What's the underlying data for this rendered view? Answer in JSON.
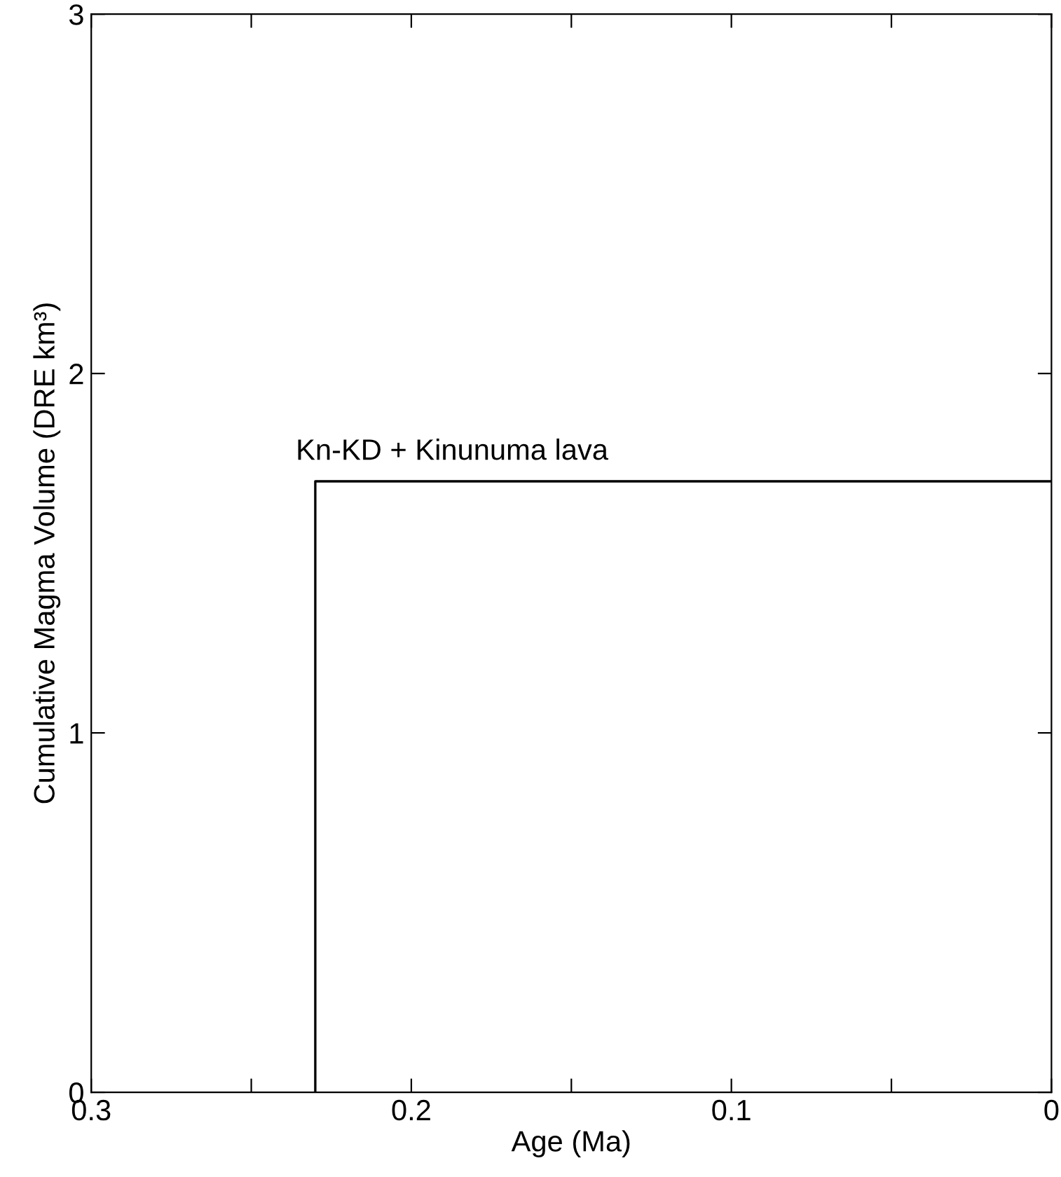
{
  "chart_data": {
    "type": "step",
    "xlabel": "Age (Ma)",
    "ylabel": "Cumulative Magma Volume (DRE km³)",
    "series": [
      {
        "color": "#000000",
        "x": [
          0.23,
          0
        ],
        "values": [
          0,
          1.7
        ]
      }
    ],
    "annotations": [
      {
        "text": "Kn-KD + Kinunuma lava",
        "x": 0.23,
        "y": 1.7
      }
    ],
    "xlim": [
      0.3,
      0
    ],
    "xticks": [
      {
        "value": 0.3,
        "label": "0.3"
      },
      {
        "value": 0.25,
        "label": null
      },
      {
        "value": 0.2,
        "label": "0.2"
      },
      {
        "value": 0.15,
        "label": null
      },
      {
        "value": 0.1,
        "label": "0.1"
      },
      {
        "value": 0.05,
        "label": null
      },
      {
        "value": 0,
        "label": "0"
      }
    ],
    "ylim": [
      0,
      3
    ],
    "yticks": [
      0,
      1,
      2,
      3
    ],
    "grid": false,
    "marker": "none",
    "line_style": "solid"
  }
}
